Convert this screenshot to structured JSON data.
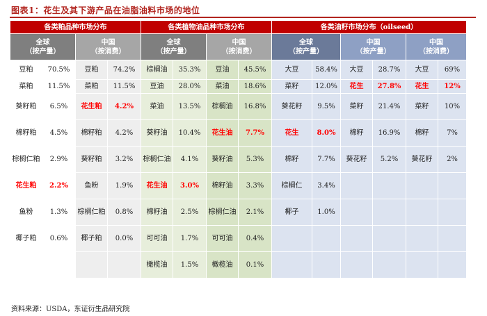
{
  "title": "图表1：花生及其下游产品在油脂油料市场的地位",
  "source": "资料来源：USDA，东证衍生品研究院",
  "headers": {
    "meal": "各类粕品种市场分布",
    "oil": "各类植物油品种市场分布",
    "seed": "各类油籽市场分布（oilseed）",
    "global_top": "全球",
    "global_bottom": "（按产量）",
    "china": "中国",
    "by_consumption": "（按消费）",
    "by_production": "（按产量）"
  },
  "rows": [
    {
      "meal_g": [
        "豆粕",
        "70.5%"
      ],
      "meal_c": [
        "豆粕",
        "74.2%"
      ],
      "oil_g": [
        "棕榈油",
        "35.3%"
      ],
      "oil_c": [
        "豆油",
        "45.5%"
      ],
      "seed_g": [
        "大豆",
        "58.4%"
      ],
      "seed_c": [
        "大豆",
        "28.7%"
      ],
      "seed_c2": [
        "大豆",
        "69%"
      ]
    },
    {
      "meal_g": [
        "菜粕",
        "11.5%"
      ],
      "meal_c": [
        "菜粕",
        "11.5%"
      ],
      "oil_g": [
        "豆油",
        "28.0%"
      ],
      "oil_c": [
        "菜油",
        "18.6%"
      ],
      "seed_g": [
        "菜籽",
        "12.0%"
      ],
      "seed_c": [
        "花生",
        "27.8%"
      ],
      "seed_c2": [
        "花生",
        "12%"
      ]
    },
    {
      "meal_g": [
        "葵籽粕",
        "6.5%"
      ],
      "meal_c": [
        "花生粕",
        "4.2%"
      ],
      "oil_g": [
        "菜油",
        "13.5%"
      ],
      "oil_c": [
        "棕榈油",
        "16.8%"
      ],
      "seed_g": [
        "葵花籽",
        "9.5%"
      ],
      "seed_c": [
        "菜籽",
        "21.4%"
      ],
      "seed_c2": [
        "菜籽",
        "10%"
      ]
    },
    {
      "meal_g": [
        "棉籽粕",
        "4.5%"
      ],
      "meal_c": [
        "棉籽粕",
        "4.2%"
      ],
      "oil_g": [
        "葵籽油",
        "10.4%"
      ],
      "oil_c": [
        "花生油",
        "7.7%"
      ],
      "seed_g": [
        "花生",
        "8.0%"
      ],
      "seed_c": [
        "棉籽",
        "16.9%"
      ],
      "seed_c2": [
        "棉籽",
        "7%"
      ]
    },
    {
      "meal_g": [
        "棕榈仁粕",
        "2.9%"
      ],
      "meal_c": [
        "葵籽粕",
        "3.2%"
      ],
      "oil_g": [
        "棕榈仁油",
        "4.1%"
      ],
      "oil_c": [
        "葵籽油",
        "5.3%"
      ],
      "seed_g": [
        "棉籽",
        "7.7%"
      ],
      "seed_c": [
        "葵花籽",
        "5.2%"
      ],
      "seed_c2": [
        "葵花籽",
        "2%"
      ]
    },
    {
      "meal_g": [
        "花生粕",
        "2.2%"
      ],
      "meal_c": [
        "鱼粉",
        "1.9%"
      ],
      "oil_g": [
        "花生油",
        "3.0%"
      ],
      "oil_c": [
        "棉籽油",
        "3.3%"
      ],
      "seed_g": [
        "棕榈仁",
        "3.4%"
      ],
      "seed_c": [
        "",
        ""
      ],
      "seed_c2": [
        "",
        ""
      ]
    },
    {
      "meal_g": [
        "鱼粉",
        "1.3%"
      ],
      "meal_c": [
        "棕榈仁粕",
        "0.8%"
      ],
      "oil_g": [
        "棉籽油",
        "2.5%"
      ],
      "oil_c": [
        "棕榈仁油",
        "2.1%"
      ],
      "seed_g": [
        "椰子",
        "1.0%"
      ],
      "seed_c": [
        "",
        ""
      ],
      "seed_c2": [
        "",
        ""
      ]
    },
    {
      "meal_g": [
        "椰子粕",
        "0.6%"
      ],
      "meal_c": [
        "椰子粕",
        "0.0%"
      ],
      "oil_g": [
        "可可油",
        "1.7%"
      ],
      "oil_c": [
        "可可油",
        "0.4%"
      ],
      "seed_g": [
        "",
        ""
      ],
      "seed_c": [
        "",
        ""
      ],
      "seed_c2": [
        "",
        ""
      ]
    },
    {
      "meal_g": [
        "",
        ""
      ],
      "meal_c": [
        "",
        ""
      ],
      "oil_g": [
        "橄榄油",
        "1.5%"
      ],
      "oil_c": [
        "橄榄油",
        "0.1%"
      ],
      "seed_g": [
        "",
        ""
      ],
      "seed_c": [
        "",
        ""
      ],
      "seed_c2": [
        "",
        ""
      ]
    }
  ]
}
